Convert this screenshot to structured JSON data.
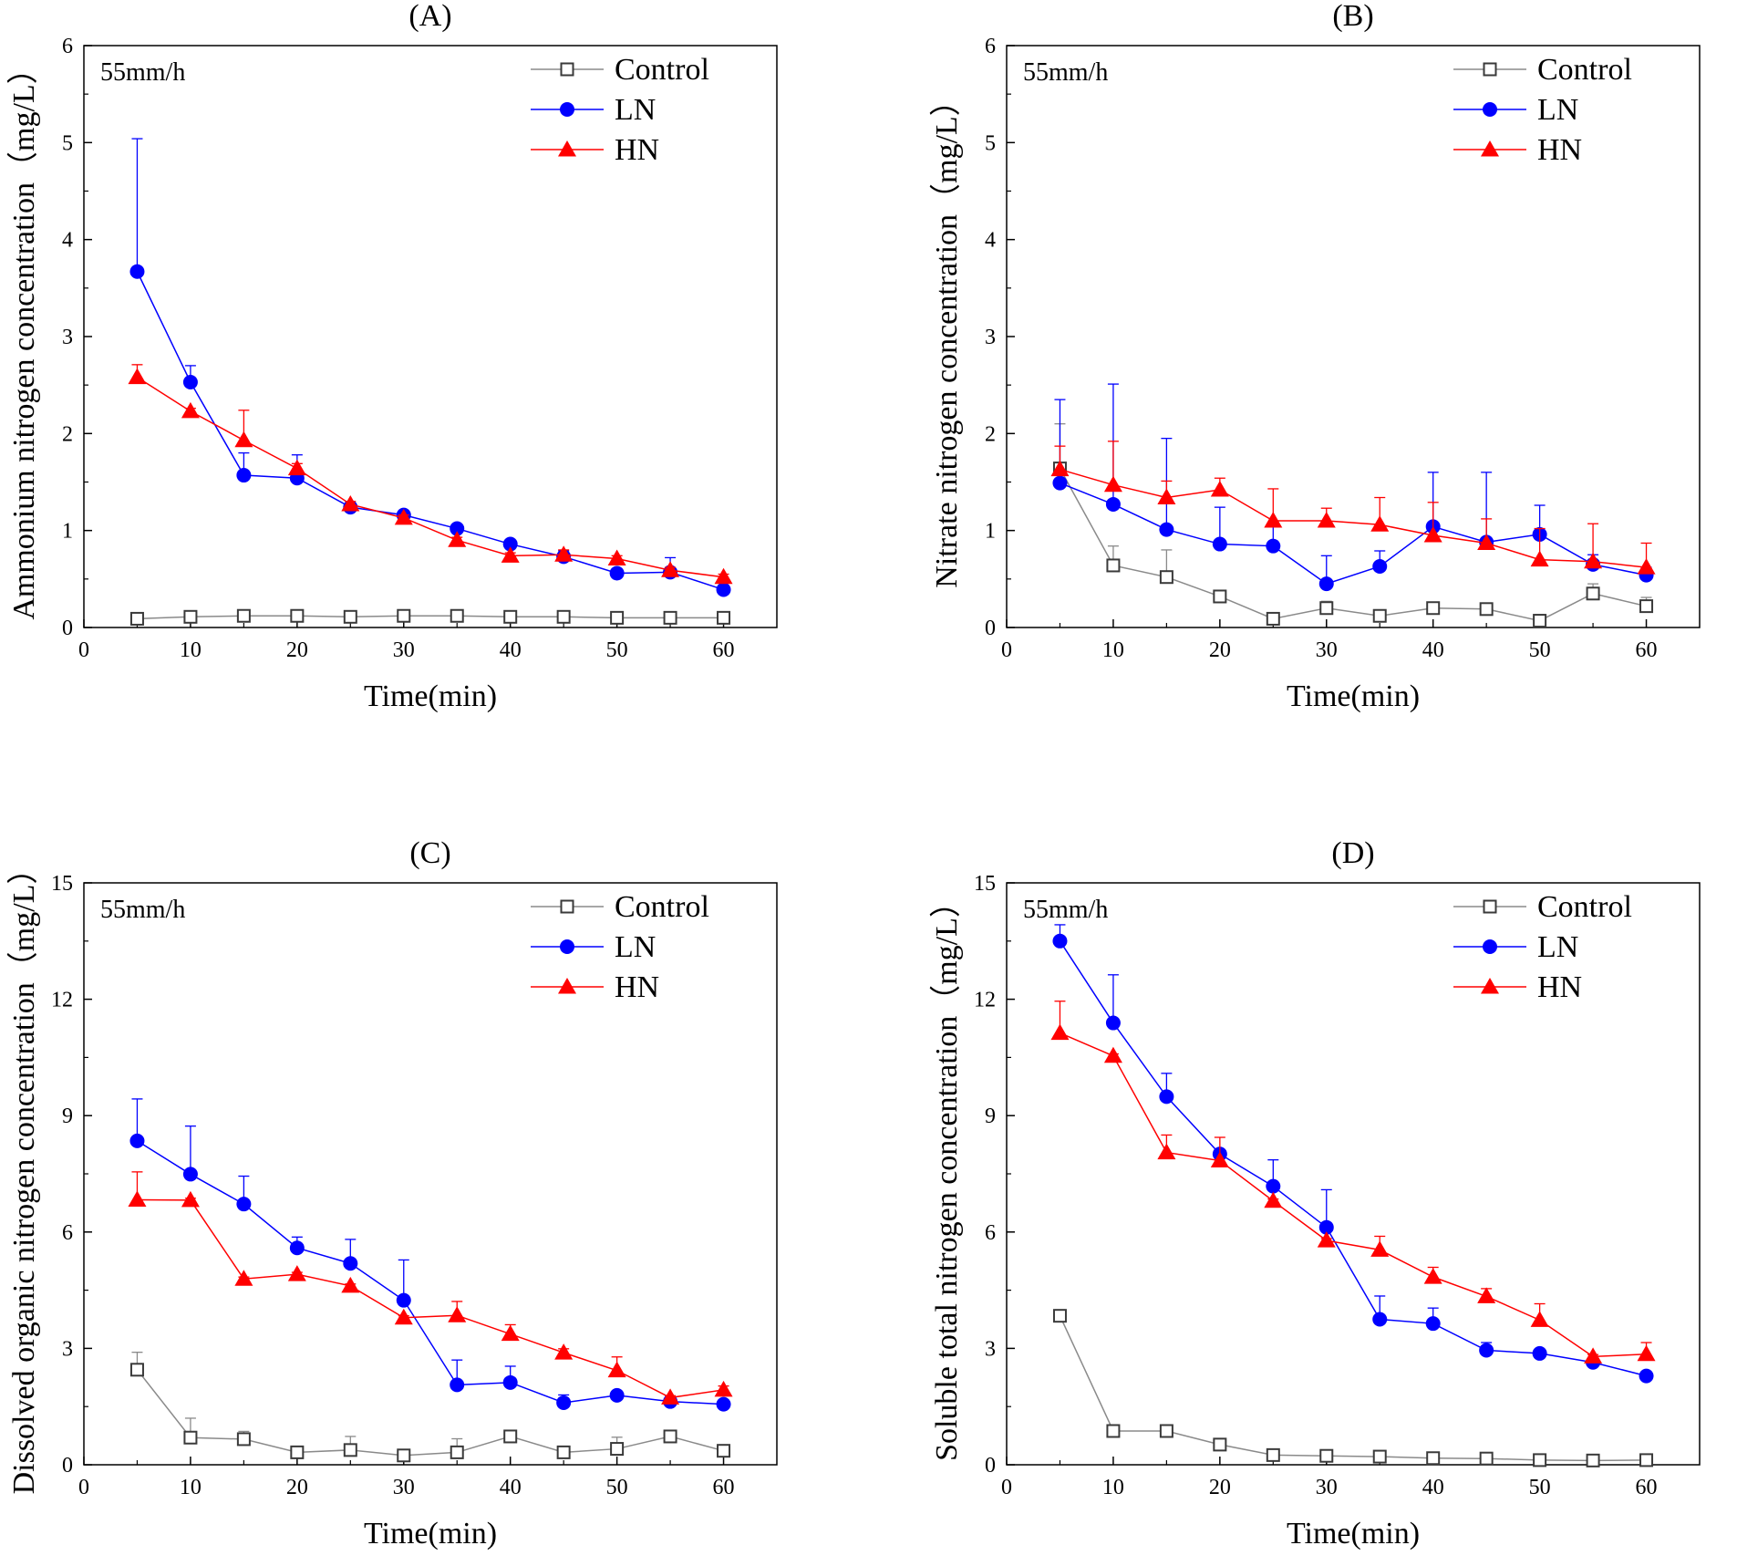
{
  "chart_data": [
    {
      "type": "line",
      "panel": "(A)",
      "title": "(A)",
      "annotation": "55mm/h",
      "xlabel": "Time(min)",
      "ylabel": "Ammonium nitrogen concentration（mg/L）",
      "xlim": [
        0,
        65
      ],
      "ylim": [
        0,
        6
      ],
      "xticks": [
        "0",
        "10",
        "20",
        "30",
        "40",
        "50",
        "60"
      ],
      "yticks": [
        "0",
        "1",
        "2",
        "3",
        "4",
        "5",
        "6"
      ],
      "legend_position": "top-right",
      "x": [
        5,
        10,
        15,
        20,
        25,
        30,
        35,
        40,
        45,
        50,
        55,
        60
      ],
      "series": [
        {
          "name": "Control",
          "marker": "open-square",
          "color": "#808080",
          "values": [
            0.09,
            0.11,
            0.12,
            0.12,
            0.11,
            0.12,
            0.12,
            0.11,
            0.11,
            0.1,
            0.1,
            0.1
          ],
          "errors": [
            0,
            0,
            0,
            0,
            0,
            0,
            0,
            0,
            0,
            0,
            0,
            0
          ]
        },
        {
          "name": "LN",
          "marker": "filled-circle",
          "color": "#0000ff",
          "values": [
            3.67,
            2.53,
            1.57,
            1.54,
            1.24,
            1.16,
            1.02,
            0.86,
            0.73,
            0.56,
            0.57,
            0.39
          ],
          "errors": [
            1.37,
            0.17,
            0.23,
            0.24,
            0.04,
            0.03,
            0.03,
            0.03,
            0.06,
            0.02,
            0.15,
            0.03
          ]
        },
        {
          "name": "HN",
          "marker": "filled-triangle",
          "color": "#ff0000",
          "values": [
            2.58,
            2.23,
            1.93,
            1.64,
            1.27,
            1.13,
            0.9,
            0.74,
            0.75,
            0.71,
            0.59,
            0.52
          ],
          "errors": [
            0.13,
            0.03,
            0.31,
            0.05,
            0.03,
            0.03,
            0.03,
            0.03,
            0.05,
            0.03,
            0.03,
            0.03
          ]
        }
      ]
    },
    {
      "type": "line",
      "panel": "(B)",
      "title": "(B)",
      "annotation": "55mm/h",
      "xlabel": "Time(min)",
      "ylabel": "Nitrate nitrogen concentration（mg/L）",
      "xlim": [
        0,
        65
      ],
      "ylim": [
        0,
        6
      ],
      "xticks": [
        "0",
        "10",
        "20",
        "30",
        "40",
        "50",
        "60"
      ],
      "yticks": [
        "0",
        "1",
        "2",
        "3",
        "4",
        "5",
        "6"
      ],
      "legend_position": "top-right",
      "x": [
        5,
        10,
        15,
        20,
        25,
        30,
        35,
        40,
        45,
        50,
        55,
        60
      ],
      "series": [
        {
          "name": "Control",
          "marker": "open-square",
          "color": "#808080",
          "values": [
            1.64,
            0.64,
            0.52,
            0.32,
            0.09,
            0.2,
            0.12,
            0.2,
            0.19,
            0.07,
            0.35,
            0.22
          ],
          "errors": [
            0.46,
            0.2,
            0.28,
            0.04,
            0.05,
            0.07,
            0.04,
            0.03,
            0.05,
            0.02,
            0.1,
            0.09
          ]
        },
        {
          "name": "LN",
          "marker": "filled-circle",
          "color": "#0000ff",
          "values": [
            1.49,
            1.27,
            1.01,
            0.86,
            0.84,
            0.45,
            0.63,
            1.04,
            0.88,
            0.96,
            0.65,
            0.54
          ],
          "errors": [
            0.86,
            1.24,
            0.94,
            0.38,
            0.24,
            0.29,
            0.16,
            0.56,
            0.72,
            0.3,
            0.1,
            0.08
          ]
        },
        {
          "name": "HN",
          "marker": "filled-triangle",
          "color": "#ff0000",
          "values": [
            1.63,
            1.47,
            1.34,
            1.42,
            1.1,
            1.1,
            1.06,
            0.95,
            0.87,
            0.7,
            0.68,
            0.62
          ],
          "errors": [
            0.24,
            0.45,
            0.17,
            0.12,
            0.33,
            0.13,
            0.28,
            0.34,
            0.25,
            0.32,
            0.39,
            0.25
          ]
        }
      ]
    },
    {
      "type": "line",
      "panel": "(C)",
      "title": "(C)",
      "annotation": "55mm/h",
      "xlabel": "Time(min)",
      "ylabel": "Dissolved organic nitrogen concentration（mg/L）",
      "xlim": [
        0,
        65
      ],
      "ylim": [
        0,
        15
      ],
      "xticks": [
        "0",
        "10",
        "20",
        "30",
        "40",
        "50",
        "60"
      ],
      "yticks": [
        "0",
        "3",
        "6",
        "9",
        "12",
        "15"
      ],
      "legend_position": "top-right",
      "x": [
        5,
        10,
        15,
        20,
        25,
        30,
        35,
        40,
        45,
        50,
        55,
        60
      ],
      "series": [
        {
          "name": "Control",
          "marker": "open-square",
          "color": "#808080",
          "values": [
            2.45,
            0.7,
            0.66,
            0.32,
            0.38,
            0.24,
            0.32,
            0.73,
            0.32,
            0.41,
            0.73,
            0.36
          ],
          "errors": [
            0.45,
            0.5,
            0.2,
            0.08,
            0.35,
            0.1,
            0.35,
            0.12,
            0.1,
            0.3,
            0.08,
            0.05
          ]
        },
        {
          "name": "LN",
          "marker": "filled-circle",
          "color": "#0000ff",
          "values": [
            8.35,
            7.49,
            6.72,
            5.59,
            5.19,
            4.24,
            2.06,
            2.12,
            1.6,
            1.79,
            1.63,
            1.56
          ],
          "errors": [
            1.08,
            1.24,
            0.72,
            0.28,
            0.62,
            1.04,
            0.64,
            0.42,
            0.2,
            0.08,
            0.05,
            0.05
          ]
        },
        {
          "name": "HN",
          "marker": "filled-triangle",
          "color": "#ff0000",
          "values": [
            6.83,
            6.82,
            4.79,
            4.91,
            4.61,
            3.79,
            3.85,
            3.37,
            2.89,
            2.43,
            1.73,
            1.93
          ],
          "errors": [
            0.72,
            0.05,
            0.05,
            0.05,
            0.05,
            0.05,
            0.36,
            0.24,
            0.1,
            0.35,
            0.05,
            0.1
          ]
        }
      ]
    },
    {
      "type": "line",
      "panel": "(D)",
      "title": "(D)",
      "annotation": "55mm/h",
      "xlabel": "Time(min)",
      "ylabel": "Soluble total  nitrogen concentration（mg/L）",
      "xlim": [
        0,
        65
      ],
      "ylim": [
        0,
        15
      ],
      "xticks": [
        "0",
        "10",
        "20",
        "30",
        "40",
        "50",
        "60"
      ],
      "yticks": [
        "0",
        "3",
        "6",
        "9",
        "12",
        "15"
      ],
      "legend_position": "top-right",
      "x": [
        5,
        10,
        15,
        20,
        25,
        30,
        35,
        40,
        45,
        50,
        55,
        60
      ],
      "series": [
        {
          "name": "Control",
          "marker": "open-square",
          "color": "#808080",
          "values": [
            3.84,
            0.87,
            0.87,
            0.52,
            0.25,
            0.23,
            0.21,
            0.17,
            0.16,
            0.12,
            0.11,
            0.12
          ],
          "errors": [
            0,
            0,
            0,
            0,
            0,
            0,
            0,
            0,
            0,
            0,
            0,
            0
          ]
        },
        {
          "name": "LN",
          "marker": "filled-circle",
          "color": "#0000ff",
          "values": [
            13.5,
            11.39,
            9.49,
            8.01,
            7.18,
            6.12,
            3.75,
            3.64,
            2.95,
            2.87,
            2.64,
            2.29
          ],
          "errors": [
            0.42,
            1.24,
            0.6,
            0.05,
            0.68,
            0.97,
            0.6,
            0.4,
            0.2,
            0.05,
            0.05,
            0.05
          ]
        },
        {
          "name": "HN",
          "marker": "filled-triangle",
          "color": "#ff0000",
          "values": [
            11.13,
            10.54,
            8.05,
            7.84,
            6.8,
            5.78,
            5.54,
            4.84,
            4.34,
            3.73,
            2.79,
            2.85
          ],
          "errors": [
            0.82,
            0.05,
            0.45,
            0.6,
            0.05,
            0.05,
            0.35,
            0.25,
            0.2,
            0.42,
            0.05,
            0.3
          ]
        }
      ]
    }
  ]
}
